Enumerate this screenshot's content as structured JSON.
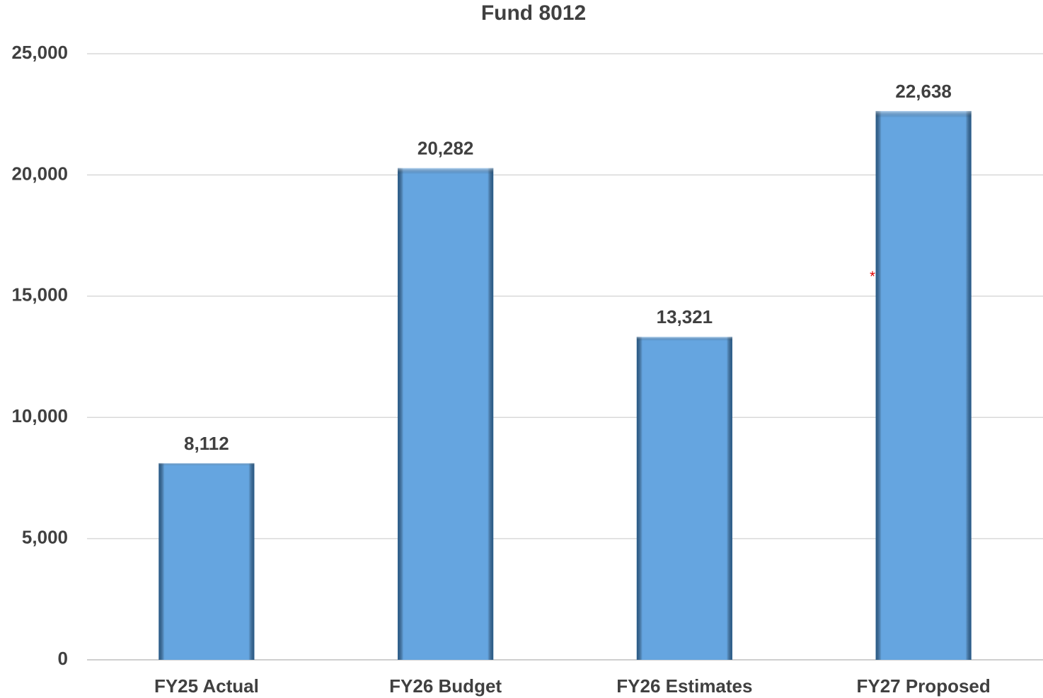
{
  "chart_data": {
    "type": "bar",
    "title": "Fund 8012",
    "categories": [
      "FY25 Actual",
      "FY26 Budget",
      "FY26 Estimates",
      "FY27 Proposed"
    ],
    "values": [
      8112,
      20282,
      13321,
      22638
    ],
    "value_labels": [
      "8,112",
      "20,282",
      "13,321",
      "22,638"
    ],
    "color": "#65a5e0",
    "ylim": [
      0,
      25000
    ],
    "yticks": [
      0,
      {
        "value": 5000,
        "label": "5,000"
      },
      {
        "value": 10000,
        "label": "10,000"
      },
      {
        "value": 15000,
        "label": "15,000"
      },
      {
        "value": 20000,
        "label": "20,000"
      },
      {
        "value": 25000,
        "label": "25,000"
      }
    ],
    "grid": true,
    "annotations": [
      "*"
    ]
  }
}
